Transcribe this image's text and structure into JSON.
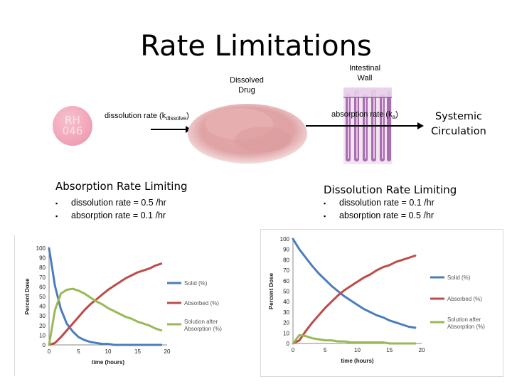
{
  "title": "Rate Limitations",
  "labels": {
    "dissolved_drug": "Dissolved\nDrug",
    "intestinal_wall": "Intestinal\nWall",
    "pill_text": "RH\n046",
    "dissolution_rate_prefix": "dissolution rate (k",
    "dissolution_rate_sub": "dissolve",
    "dissolution_rate_suffix": ")",
    "absorption_rate_prefix": "absorption rate (k",
    "absorption_rate_sub": "a",
    "absorption_rate_suffix": ")",
    "systemic_circulation": "Systemic\nCirculation"
  },
  "left_panel": {
    "heading": "Absorption Rate Limiting",
    "bullets": [
      "dissolution rate = 0.5 /hr",
      "absorption rate = 0.1 /hr"
    ]
  },
  "right_panel": {
    "heading": "Dissolution Rate Limiting",
    "bullets": [
      "dissolution rate = 0.1 /hr",
      "absorption rate = 0.5 /hr"
    ]
  },
  "colors": {
    "solid": "#4a7ebb",
    "absorbed": "#be4b48",
    "solution": "#98b954",
    "pill": "#f2a6b8",
    "powder": "#e9b7b7"
  },
  "chart_data": [
    {
      "type": "line",
      "ylabel": "Percent Dose",
      "xlabel": "time (hours)",
      "xlim": [
        0,
        20
      ],
      "ylim": [
        0,
        100
      ],
      "xticks": [
        "0",
        "5",
        "10",
        "15",
        "20"
      ],
      "yticks": [
        "0",
        "10",
        "20",
        "30",
        "40",
        "50",
        "60",
        "70",
        "80",
        "90",
        "100"
      ],
      "x": [
        0,
        1,
        2,
        3,
        4,
        5,
        6,
        7,
        8,
        9,
        10,
        11,
        12,
        13,
        14,
        15,
        16,
        17,
        18,
        19
      ],
      "series": [
        {
          "name": "Solid (%)",
          "color_key": "solid",
          "values": [
            100,
            61,
            37,
            22,
            14,
            8,
            5,
            3,
            2,
            1,
            1,
            0,
            0,
            0,
            0,
            0,
            0,
            0,
            0,
            0
          ]
        },
        {
          "name": "Absorbed (%)",
          "color_key": "absorbed",
          "values": [
            0,
            2,
            8,
            15,
            22,
            29,
            36,
            42,
            47,
            52,
            57,
            61,
            65,
            69,
            72,
            75,
            77,
            79,
            82,
            84
          ]
        },
        {
          "name": "Solution after Absorption (%)",
          "color_key": "solution",
          "values": [
            0,
            36,
            53,
            57,
            58,
            56,
            53,
            49,
            45,
            42,
            38,
            35,
            32,
            29,
            27,
            24,
            22,
            20,
            17,
            15
          ]
        }
      ]
    },
    {
      "type": "line",
      "ylabel": "Percent Dose",
      "xlabel": "time (hours)",
      "xlim": [
        0,
        20
      ],
      "ylim": [
        0,
        100
      ],
      "xticks": [
        "0",
        "5",
        "10",
        "15",
        "20"
      ],
      "yticks": [
        "0",
        "10",
        "20",
        "30",
        "40",
        "50",
        "60",
        "70",
        "80",
        "90",
        "100"
      ],
      "x": [
        0,
        1,
        2,
        3,
        4,
        5,
        6,
        7,
        8,
        9,
        10,
        11,
        12,
        13,
        14,
        15,
        16,
        17,
        18,
        19
      ],
      "series": [
        {
          "name": "Solid (%)",
          "color_key": "solid",
          "values": [
            100,
            90,
            82,
            74,
            67,
            61,
            55,
            50,
            45,
            41,
            37,
            33,
            30,
            27,
            25,
            22,
            20,
            18,
            16,
            15
          ]
        },
        {
          "name": "Absorbed (%)",
          "color_key": "absorbed",
          "values": [
            0,
            3,
            12,
            20,
            27,
            34,
            40,
            46,
            51,
            55,
            59,
            63,
            66,
            70,
            73,
            75,
            78,
            80,
            82,
            84
          ]
        },
        {
          "name": "Solution after Absorption (%)",
          "color_key": "solution",
          "values": [
            0,
            8,
            7,
            5,
            4,
            3,
            3,
            2,
            2,
            1,
            1,
            1,
            1,
            1,
            1,
            0,
            0,
            0,
            0,
            0
          ]
        }
      ]
    }
  ]
}
